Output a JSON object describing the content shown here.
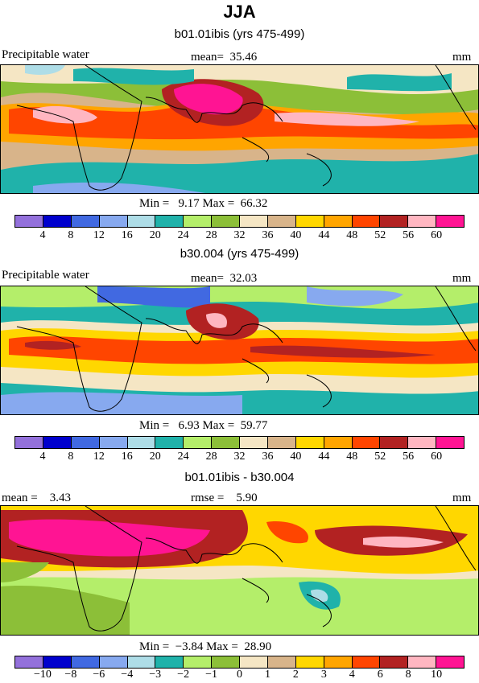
{
  "title": "JJA",
  "palette": [
    "#9370db",
    "#0000cd",
    "#4169e1",
    "#87a9ef",
    "#aedde7",
    "#20b2aa",
    "#b4ee6a",
    "#8cbf38",
    "#f5e6c4",
    "#d8b48a",
    "#ffd700",
    "#ffa500",
    "#ff4500",
    "#b22222",
    "#ffb6c1",
    "#ff1493"
  ],
  "panels": [
    {
      "subtitle": "b01.01ibis (yrs 475-499)",
      "left_label": "Precipitable water",
      "center_label": "mean=  35.46",
      "right_label": "mm",
      "minmax": "Min =   9.17 Max =  66.32",
      "tick_labels": [
        "4",
        "8",
        "12",
        "16",
        "20",
        "24",
        "28",
        "32",
        "36",
        "40",
        "44",
        "48",
        "52",
        "56",
        "60"
      ]
    },
    {
      "subtitle": "b30.004 (yrs 475-499)",
      "left_label": "Precipitable water",
      "center_label": "mean=  32.03",
      "right_label": "mm",
      "minmax": "Min =   6.93 Max =  59.77",
      "tick_labels": [
        "4",
        "8",
        "12",
        "16",
        "20",
        "24",
        "28",
        "32",
        "36",
        "40",
        "44",
        "48",
        "52",
        "56",
        "60"
      ]
    },
    {
      "subtitle": "b01.01ibis - b30.004",
      "left_label": "mean =    3.43",
      "center_label": "rmse =    5.90",
      "right_label": "mm",
      "minmax": "Min =  −3.84 Max =  28.90",
      "tick_labels": [
        "−10",
        "−8",
        "−6",
        "−4",
        "−3",
        "−2",
        "−1",
        "0",
        "1",
        "2",
        "3",
        "4",
        "6",
        "8",
        "10"
      ]
    }
  ]
}
